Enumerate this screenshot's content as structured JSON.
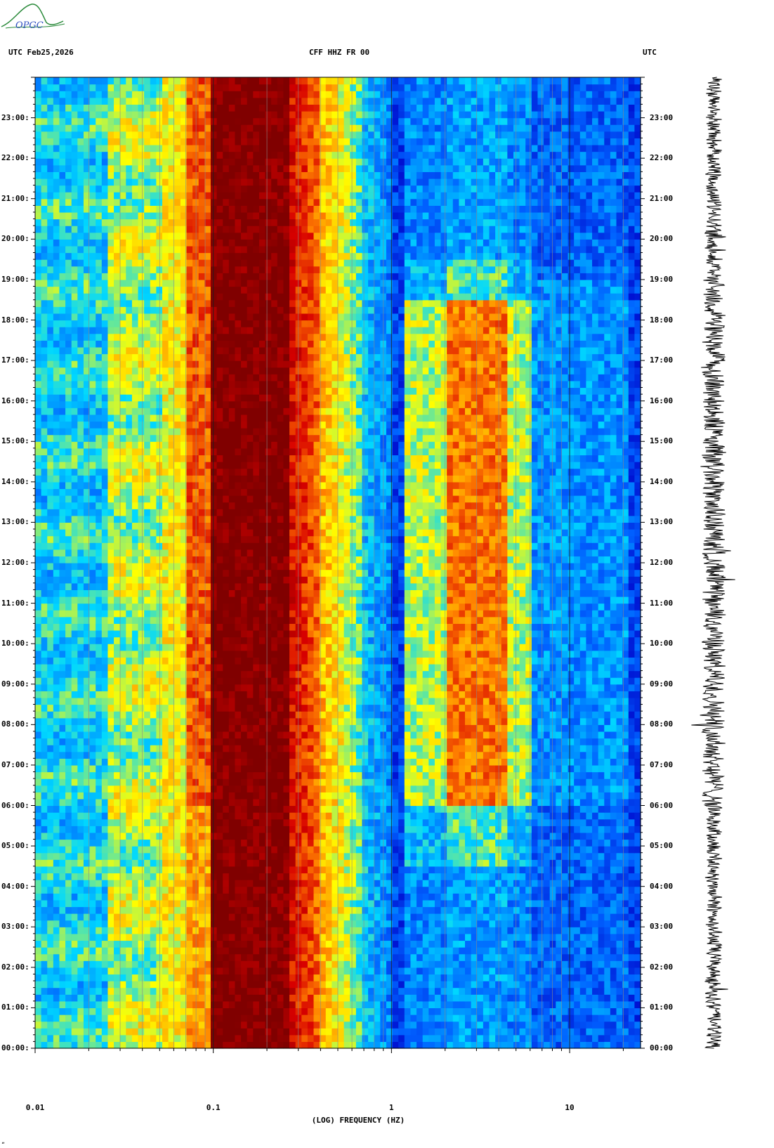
{
  "header": {
    "left": "UTC  Feb25,2026",
    "center": "CFF HHZ FR 00",
    "right": "UTC"
  },
  "logo": {
    "text": "OPGC"
  },
  "corner_mark": "„",
  "chart_data": {
    "type": "heatmap",
    "title": "CFF HHZ FR 00",
    "date": "Feb25,2026",
    "xlabel": "(LOG) FREQUENCY (HZ)",
    "ylabel": "UTC",
    "x_scale": "log",
    "xlim": [
      0.01,
      25
    ],
    "x_ticks": [
      {
        "value": 0.01,
        "label": "0.01"
      },
      {
        "value": 0.1,
        "label": "0.1"
      },
      {
        "value": 1,
        "label": "1"
      },
      {
        "value": 10,
        "label": "10"
      }
    ],
    "y_ticks": [
      "00:00",
      "01:00",
      "02:00",
      "03:00",
      "04:00",
      "05:00",
      "06:00",
      "07:00",
      "08:00",
      "09:00",
      "10:00",
      "11:00",
      "12:00",
      "13:00",
      "14:00",
      "15:00",
      "16:00",
      "17:00",
      "18:00",
      "19:00",
      "20:00",
      "21:00",
      "22:00",
      "23:00"
    ],
    "ylim_hours": [
      0,
      24
    ],
    "colormap": [
      "#0000c8",
      "#0060ff",
      "#00d8ff",
      "#ffff00",
      "#ff8000",
      "#d80000",
      "#800000"
    ],
    "vertical_gridlines": "per log decade",
    "seismogram_trace": "right panel, 24 h vertical trace",
    "noise_bands": [
      {
        "freq_range_hz": [
          0.1,
          0.25
        ],
        "level": "saturated"
      },
      {
        "freq_range_hz": [
          2.0,
          4.5
        ],
        "hours": [
          6.5,
          17.8
        ],
        "level": "high (daytime cultural noise)"
      }
    ]
  }
}
